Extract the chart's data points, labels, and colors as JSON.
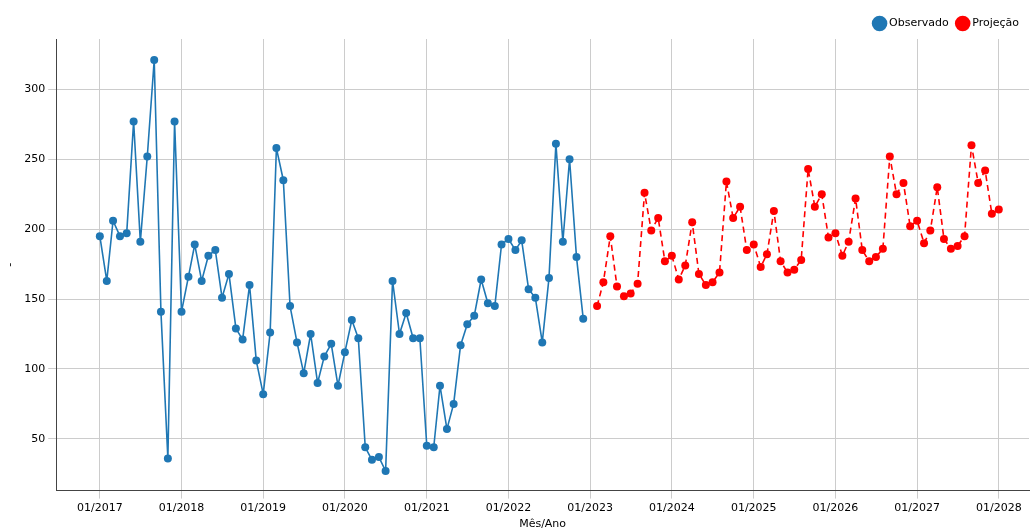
{
  "chart_data": {
    "type": "line",
    "xlabel": "Mês/Ano",
    "ylabel": "-",
    "xlim": [
      "2016-06-20",
      "2028-05-15"
    ],
    "ylim": [
      13,
      336
    ],
    "xticks": [
      {
        "value": "2017-01",
        "label": "01/2017"
      },
      {
        "value": "2018-01",
        "label": "01/2018"
      },
      {
        "value": "2019-01",
        "label": "01/2019"
      },
      {
        "value": "2020-01",
        "label": "01/2020"
      },
      {
        "value": "2021-01",
        "label": "01/2021"
      },
      {
        "value": "2022-01",
        "label": "01/2022"
      },
      {
        "value": "2023-01",
        "label": "01/2023"
      },
      {
        "value": "2024-01",
        "label": "01/2024"
      },
      {
        "value": "2025-01",
        "label": "01/2025"
      },
      {
        "value": "2026-01",
        "label": "01/2026"
      },
      {
        "value": "2027-01",
        "label": "01/2027"
      },
      {
        "value": "2028-01",
        "label": "01/2028"
      }
    ],
    "yticks": [
      50,
      100,
      150,
      200,
      250,
      300
    ],
    "grid": true,
    "legend": "top right",
    "marker": "circle",
    "series": [
      {
        "name": "Observado",
        "color": "#1f77b4",
        "line_style": "solid",
        "x": [
          "2017-01",
          "2017-02",
          "2017-03",
          "2017-04",
          "2017-05",
          "2017-06",
          "2017-07",
          "2017-08",
          "2017-09",
          "2017-10",
          "2017-11",
          "2017-12",
          "2018-01",
          "2018-02",
          "2018-03",
          "2018-04",
          "2018-05",
          "2018-06",
          "2018-07",
          "2018-08",
          "2018-09",
          "2018-10",
          "2018-11",
          "2018-12",
          "2019-01",
          "2019-02",
          "2019-03",
          "2019-04",
          "2019-05",
          "2019-06",
          "2019-07",
          "2019-08",
          "2019-09",
          "2019-10",
          "2019-11",
          "2019-12",
          "2020-01",
          "2020-02",
          "2020-03",
          "2020-04",
          "2020-05",
          "2020-06",
          "2020-07",
          "2020-08",
          "2020-09",
          "2020-10",
          "2020-11",
          "2020-12",
          "2021-01",
          "2021-02",
          "2021-03",
          "2021-04",
          "2021-05",
          "2021-06",
          "2021-07",
          "2021-08",
          "2021-09",
          "2021-10",
          "2021-11",
          "2021-12",
          "2022-01",
          "2022-02",
          "2022-03",
          "2022-04",
          "2022-05",
          "2022-06",
          "2022-07",
          "2022-08",
          "2022-09",
          "2022-10",
          "2022-11",
          "2022-12"
        ],
        "values": [
          195,
          163,
          206,
          195,
          197,
          277,
          191,
          252,
          321,
          141,
          36,
          277,
          141,
          166,
          189,
          163,
          181,
          185,
          151,
          168,
          129,
          121,
          160,
          106,
          82,
          126,
          258,
          235,
          145,
          119,
          97,
          125,
          90,
          109,
          118,
          88,
          112,
          135,
          122,
          44,
          35,
          37,
          27,
          163,
          125,
          140,
          122,
          122,
          45,
          44,
          88,
          57,
          75,
          117,
          132,
          138,
          164,
          147,
          145,
          189,
          193,
          185,
          192,
          157,
          151,
          119,
          165,
          261,
          191,
          250,
          180,
          136
        ]
      },
      {
        "name": "Projeção",
        "color": "#ff0000",
        "line_style": "dashed",
        "x": [
          "2023-02",
          "2023-03",
          "2023-04",
          "2023-05",
          "2023-06",
          "2023-07",
          "2023-08",
          "2023-09",
          "2023-10",
          "2023-11",
          "2023-12",
          "2024-01",
          "2024-02",
          "2024-03",
          "2024-04",
          "2024-05",
          "2024-06",
          "2024-07",
          "2024-08",
          "2024-09",
          "2024-10",
          "2024-11",
          "2024-12",
          "2025-01",
          "2025-02",
          "2025-03",
          "2025-04",
          "2025-05",
          "2025-06",
          "2025-07",
          "2025-08",
          "2025-09",
          "2025-10",
          "2025-11",
          "2025-12",
          "2026-01",
          "2026-02",
          "2026-03",
          "2026-04",
          "2026-05",
          "2026-06",
          "2026-07",
          "2026-08",
          "2026-09",
          "2026-10",
          "2026-11",
          "2026-12",
          "2027-01",
          "2027-02",
          "2027-03",
          "2027-04",
          "2027-05",
          "2027-06",
          "2027-07",
          "2027-08",
          "2027-09",
          "2027-10",
          "2027-11",
          "2027-12",
          "2028-01"
        ],
        "values": [
          145,
          162,
          195,
          159,
          152,
          154,
          161,
          226,
          199,
          208,
          177,
          181,
          164,
          174,
          205,
          168,
          160,
          162,
          169,
          234,
          208,
          216,
          185,
          189,
          173,
          182,
          213,
          177,
          169,
          171,
          178,
          243,
          216,
          225,
          194,
          197,
          181,
          191,
          222,
          185,
          177,
          180,
          186,
          252,
          225,
          233,
          202,
          206,
          190,
          199,
          230,
          193,
          186,
          188,
          195,
          260,
          233,
          242,
          211,
          214
        ]
      }
    ]
  }
}
